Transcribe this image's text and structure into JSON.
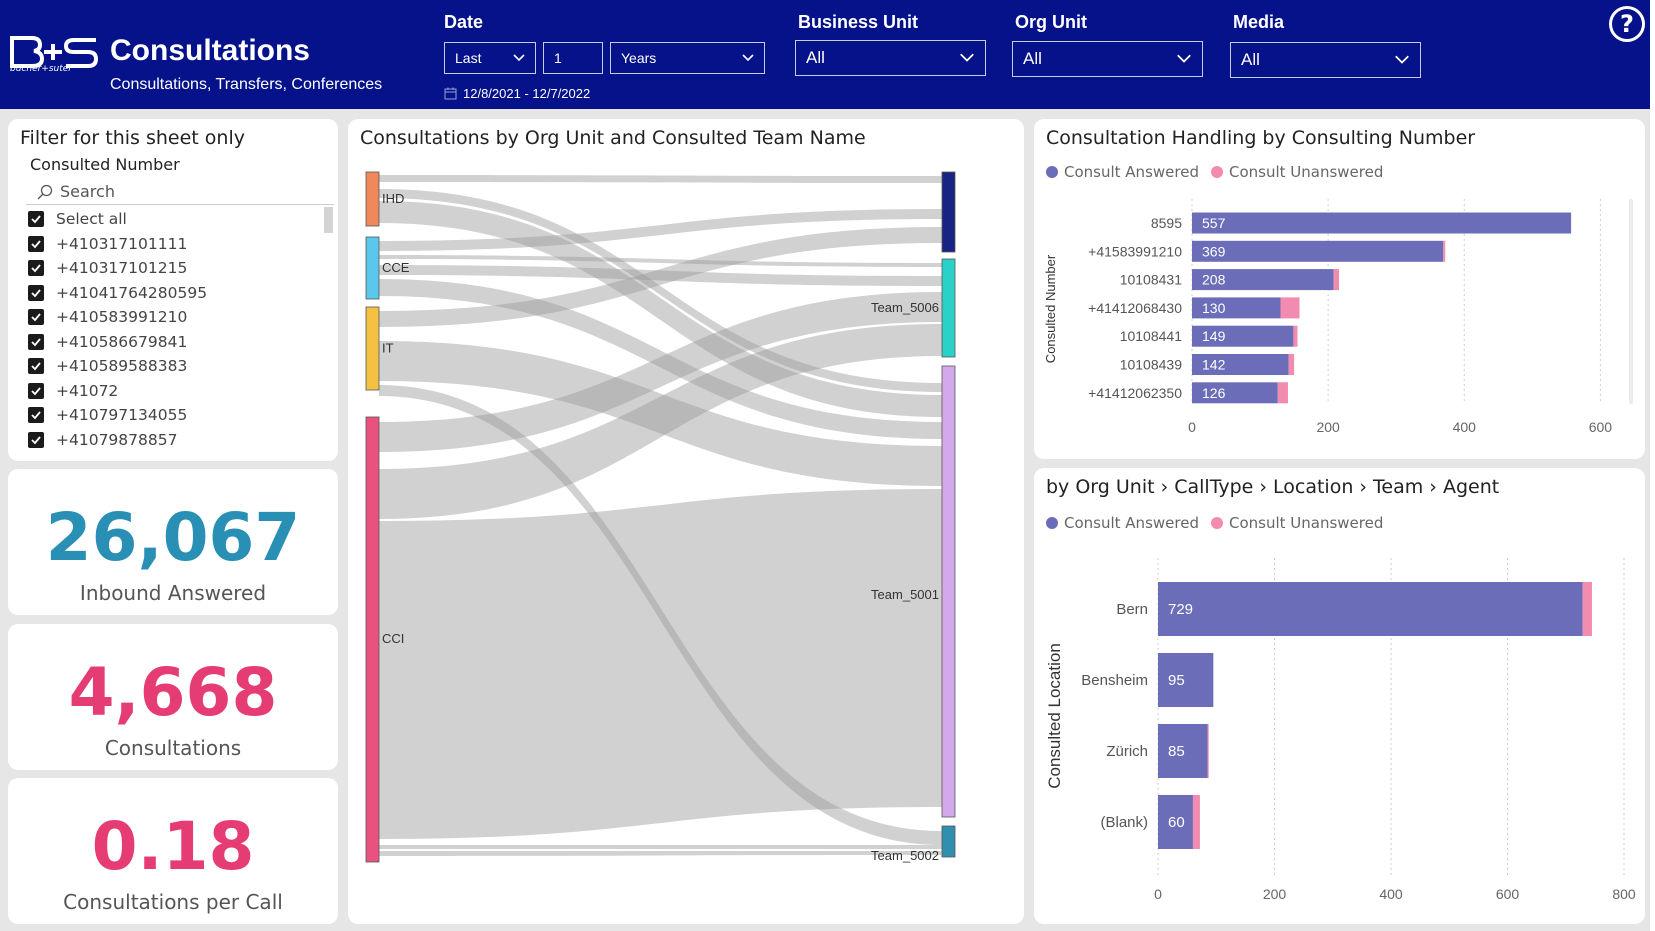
{
  "header": {
    "title": "Consultations",
    "subtitle": "Consultations, Transfers, Conferences",
    "logo_text": "bucher+suter",
    "date": {
      "label": "Date",
      "relative": "Last",
      "count": "1",
      "unit": "Years",
      "range": "12/8/2021 - 12/7/2022"
    },
    "business_unit": {
      "label": "Business Unit",
      "value": "All"
    },
    "org_unit": {
      "label": "Org Unit",
      "value": "All"
    },
    "media": {
      "label": "Media",
      "value": "All"
    },
    "help_glyph": "?"
  },
  "slicer": {
    "title": "Filter for this sheet only",
    "field": "Consulted Number",
    "search_placeholder": "Search",
    "items": [
      "Select all",
      "+410317101111",
      "+410317101215",
      "+41041764280595",
      "+410583991210",
      "+410586679841",
      "+410589588383",
      "+41072",
      "+410797134055",
      "+41079878857"
    ]
  },
  "kpis": {
    "inbound_answered": {
      "value": "26,067",
      "label": "Inbound Answered"
    },
    "consultations": {
      "value": "4,668",
      "label": "Consultations"
    },
    "per_call": {
      "value": "0.18",
      "label": "Consultations per Call"
    }
  },
  "colors": {
    "header_bg": "#06128a",
    "kpi_blue": "#2a8fb4",
    "kpi_pink": "#e63c74",
    "answered": "#6b6db8",
    "unanswered": "#f18bb0"
  },
  "sankey": {
    "title": "Consultations by Org Unit and Consulted Team Name",
    "sources": [
      {
        "name": "IHD",
        "color": "#f0885a"
      },
      {
        "name": "CCE",
        "color": "#5ac8ec"
      },
      {
        "name": "IT",
        "color": "#f5c142"
      },
      {
        "name": "CCI",
        "color": "#e9517e"
      }
    ],
    "targets": [
      {
        "name": "",
        "color": "#182483"
      },
      {
        "name": "Team_5006",
        "color": "#2ad1c8"
      },
      {
        "name": "Team_5001",
        "color": "#d4a8ec"
      },
      {
        "name": "Team_5002",
        "color": "#2e8fae"
      }
    ]
  },
  "chart_data": [
    {
      "type": "bar",
      "orientation": "horizontal",
      "stacked": true,
      "title": "Consultation Handling by Consulting Number",
      "ylabel": "Consulted Number",
      "categories": [
        "8595",
        "+41583991210",
        "10108431",
        "+41412068430",
        "10108441",
        "10108439",
        "+41412062350"
      ],
      "series": [
        {
          "name": "Consult Answered",
          "values": [
            557,
            369,
            208,
            130,
            149,
            142,
            126
          ]
        },
        {
          "name": "Consult Unanswered",
          "values": [
            0,
            3,
            8,
            28,
            6,
            8,
            15
          ]
        }
      ],
      "xticks": [
        0,
        200,
        400,
        600
      ],
      "xlim": [
        0,
        620
      ]
    },
    {
      "type": "bar",
      "orientation": "horizontal",
      "stacked": true,
      "title": "by Org Unit › CallType › Location › Team › Agent",
      "ylabel": "Consulted Location",
      "categories": [
        "Bern",
        "Bensheim",
        "Zürich",
        "(Blank)"
      ],
      "series": [
        {
          "name": "Consult Answered",
          "values": [
            729,
            95,
            85,
            60
          ]
        },
        {
          "name": "Consult Unanswered",
          "values": [
            16,
            0,
            2,
            12
          ]
        }
      ],
      "xticks": [
        0,
        200,
        400,
        600,
        800
      ],
      "xlim": [
        0,
        800
      ]
    }
  ]
}
